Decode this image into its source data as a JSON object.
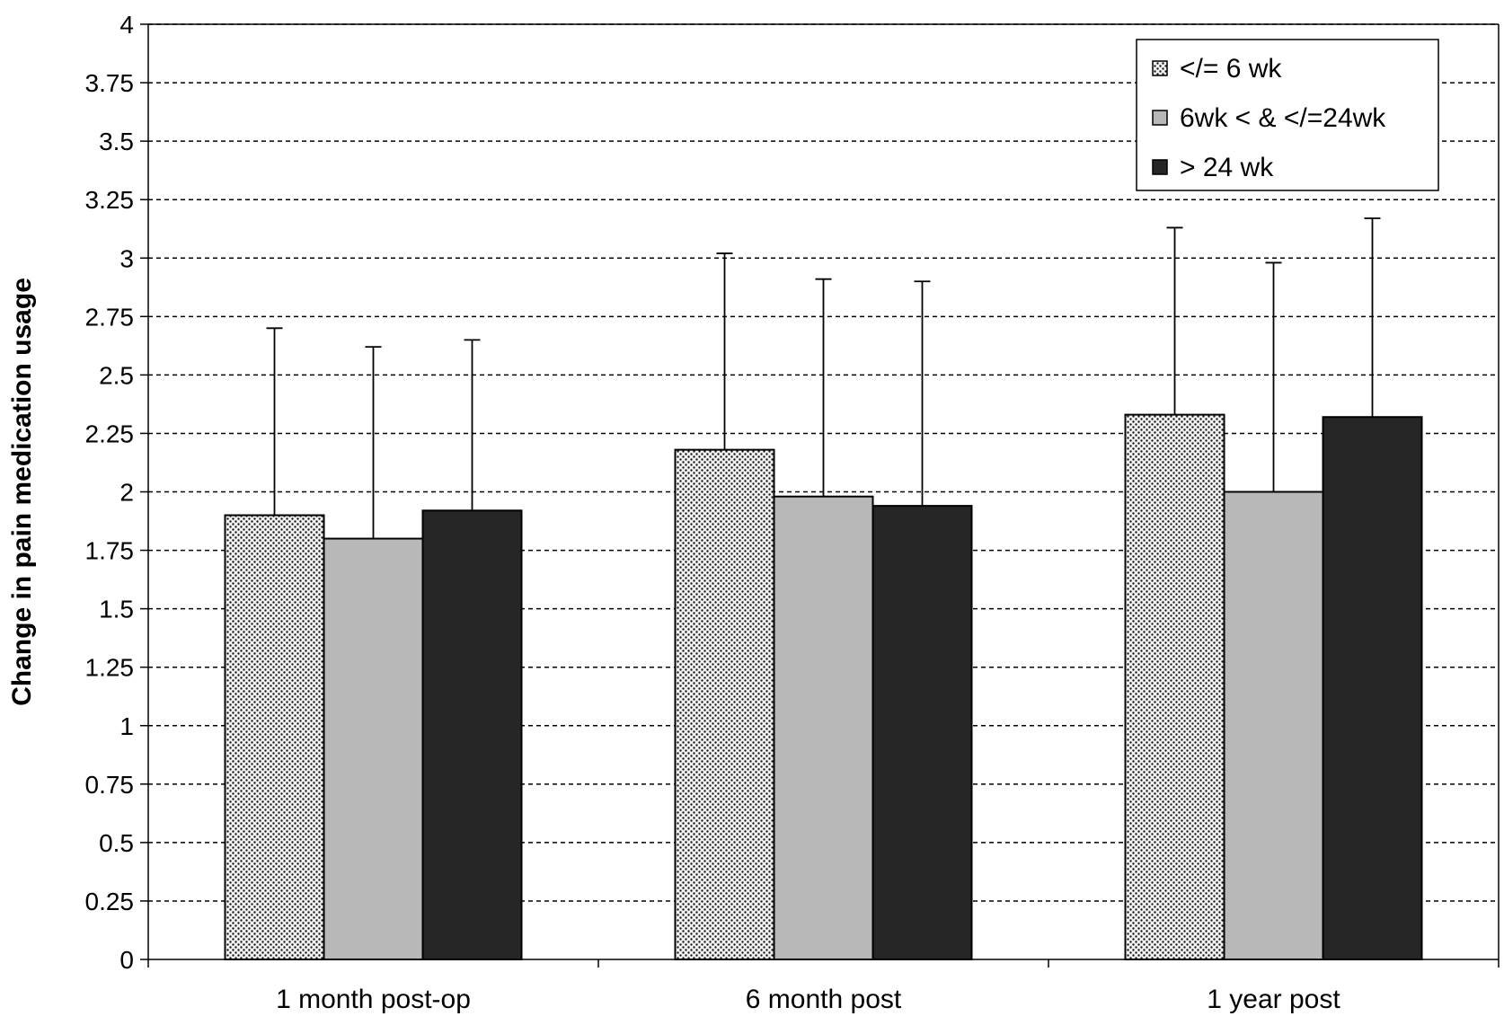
{
  "chart_data": {
    "type": "bar",
    "title": "",
    "xlabel": "",
    "ylabel": "Change in pain medication usage",
    "ylim": [
      0,
      4
    ],
    "y_ticks": [
      "0",
      "0.25",
      "0.5",
      "0.75",
      "1",
      "1.25",
      "1.5",
      "1.75",
      "2",
      "2.25",
      "2.5",
      "2.75",
      "3",
      "3.25",
      "3.5",
      "3.75",
      "4"
    ],
    "grid": true,
    "legend_position": "top-right",
    "categories": [
      "1 month post-op",
      "6 month post",
      "1 year post"
    ],
    "series": [
      {
        "name": "</= 6 wk",
        "fill": "dotted",
        "color": "#e8e8e8",
        "values": [
          1.9,
          2.18,
          2.33
        ],
        "error_upper": [
          2.7,
          3.02,
          3.13
        ]
      },
      {
        "name": "6wk < & </=24wk",
        "fill": "solid",
        "color": "#b8b8b8",
        "values": [
          1.8,
          1.98,
          2.0
        ],
        "error_upper": [
          2.62,
          2.91,
          2.98
        ]
      },
      {
        "name": "> 24 wk",
        "fill": "solid",
        "color": "#262626",
        "values": [
          1.92,
          1.94,
          2.32
        ],
        "error_upper": [
          2.65,
          2.9,
          3.17
        ]
      }
    ]
  }
}
